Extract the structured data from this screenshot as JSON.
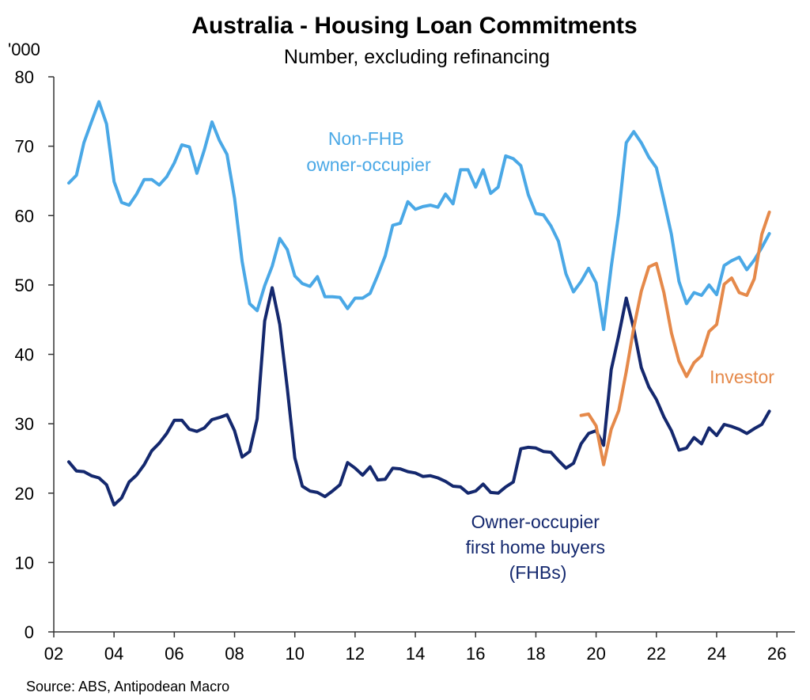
{
  "chart_data": {
    "type": "line",
    "title": "Australia - Housing Loan Commitments",
    "subtitle": "Number, excluding refinancing",
    "y_unit": "'000",
    "source": "Source: ABS, Antipodean Macro",
    "ylim": [
      0,
      80
    ],
    "yticks": [
      0,
      10,
      20,
      30,
      40,
      50,
      60,
      70,
      80
    ],
    "xlim": [
      2002,
      2026.6
    ],
    "xticks": [
      {
        "value": 2002,
        "label": "02"
      },
      {
        "value": 2004,
        "label": "04"
      },
      {
        "value": 2006,
        "label": "06"
      },
      {
        "value": 2008,
        "label": "08"
      },
      {
        "value": 2010,
        "label": "10"
      },
      {
        "value": 2012,
        "label": "12"
      },
      {
        "value": 2014,
        "label": "14"
      },
      {
        "value": 2016,
        "label": "16"
      },
      {
        "value": 2018,
        "label": "18"
      },
      {
        "value": 2020,
        "label": "20"
      },
      {
        "value": 2022,
        "label": "22"
      },
      {
        "value": 2024,
        "label": "24"
      },
      {
        "value": 2026,
        "label": "26"
      }
    ],
    "grid": false,
    "series": [
      {
        "name": "Non-FHB owner-occupier",
        "label_lines": [
          "Non-FHB",
          "owner-occupier"
        ],
        "color": "#4aa8e6",
        "points": [
          [
            2002.5,
            64.7
          ],
          [
            2002.75,
            65.8
          ],
          [
            2003.0,
            70.5
          ],
          [
            2003.25,
            73.5
          ],
          [
            2003.5,
            76.4
          ],
          [
            2003.75,
            73.2
          ],
          [
            2004.0,
            64.9
          ],
          [
            2004.25,
            61.9
          ],
          [
            2004.5,
            61.5
          ],
          [
            2004.75,
            63.1
          ],
          [
            2005.0,
            65.2
          ],
          [
            2005.25,
            65.2
          ],
          [
            2005.5,
            64.4
          ],
          [
            2005.75,
            65.6
          ],
          [
            2006.0,
            67.6
          ],
          [
            2006.25,
            70.2
          ],
          [
            2006.5,
            69.9
          ],
          [
            2006.75,
            66.1
          ],
          [
            2007.0,
            69.5
          ],
          [
            2007.25,
            73.5
          ],
          [
            2007.5,
            70.8
          ],
          [
            2007.75,
            68.8
          ],
          [
            2008.0,
            62.5
          ],
          [
            2008.25,
            53.4
          ],
          [
            2008.5,
            47.3
          ],
          [
            2008.75,
            46.3
          ],
          [
            2009.0,
            49.9
          ],
          [
            2009.25,
            52.7
          ],
          [
            2009.5,
            56.7
          ],
          [
            2009.75,
            55.1
          ],
          [
            2010.0,
            51.3
          ],
          [
            2010.25,
            50.2
          ],
          [
            2010.5,
            49.8
          ],
          [
            2010.75,
            51.2
          ],
          [
            2011.0,
            48.3
          ],
          [
            2011.25,
            48.3
          ],
          [
            2011.5,
            48.2
          ],
          [
            2011.75,
            46.6
          ],
          [
            2012.0,
            48.1
          ],
          [
            2012.25,
            48.1
          ],
          [
            2012.5,
            48.8
          ],
          [
            2012.75,
            51.4
          ],
          [
            2013.0,
            54.2
          ],
          [
            2013.25,
            58.6
          ],
          [
            2013.5,
            58.9
          ],
          [
            2013.75,
            62.0
          ],
          [
            2014.0,
            60.9
          ],
          [
            2014.25,
            61.3
          ],
          [
            2014.5,
            61.5
          ],
          [
            2014.75,
            61.2
          ],
          [
            2015.0,
            63.1
          ],
          [
            2015.25,
            61.7
          ],
          [
            2015.5,
            66.6
          ],
          [
            2015.75,
            66.6
          ],
          [
            2016.0,
            64.1
          ],
          [
            2016.25,
            66.6
          ],
          [
            2016.5,
            63.2
          ],
          [
            2016.75,
            64.1
          ],
          [
            2017.0,
            68.6
          ],
          [
            2017.25,
            68.2
          ],
          [
            2017.5,
            67.2
          ],
          [
            2017.75,
            63.0
          ],
          [
            2018.0,
            60.3
          ],
          [
            2018.25,
            60.1
          ],
          [
            2018.5,
            58.5
          ],
          [
            2018.75,
            56.3
          ],
          [
            2019.0,
            51.6
          ],
          [
            2019.25,
            49.0
          ],
          [
            2019.5,
            50.5
          ],
          [
            2019.75,
            52.4
          ],
          [
            2020.0,
            50.3
          ],
          [
            2020.25,
            43.6
          ],
          [
            2020.5,
            52.6
          ],
          [
            2020.75,
            60.3
          ],
          [
            2021.0,
            70.5
          ],
          [
            2021.25,
            72.1
          ],
          [
            2021.5,
            70.5
          ],
          [
            2021.75,
            68.4
          ],
          [
            2022.0,
            66.9
          ],
          [
            2022.25,
            62.2
          ],
          [
            2022.5,
            57.3
          ],
          [
            2022.75,
            50.5
          ],
          [
            2023.0,
            47.3
          ],
          [
            2023.25,
            48.9
          ],
          [
            2023.5,
            48.5
          ],
          [
            2023.75,
            50.0
          ],
          [
            2024.0,
            48.6
          ],
          [
            2024.25,
            52.8
          ],
          [
            2024.5,
            53.5
          ],
          [
            2024.75,
            54.0
          ],
          [
            2025.0,
            52.2
          ],
          [
            2025.25,
            53.6
          ],
          [
            2025.5,
            55.4
          ],
          [
            2025.75,
            57.4
          ]
        ]
      },
      {
        "name": "Owner-occupier first home buyers (FHBs)",
        "label_lines": [
          "Owner-occupier",
          "first home buyers",
          "(FHBs)"
        ],
        "color": "#14286e",
        "points": [
          [
            2002.5,
            24.5
          ],
          [
            2002.75,
            23.2
          ],
          [
            2003.0,
            23.1
          ],
          [
            2003.25,
            22.5
          ],
          [
            2003.5,
            22.2
          ],
          [
            2003.75,
            21.2
          ],
          [
            2004.0,
            18.3
          ],
          [
            2004.25,
            19.3
          ],
          [
            2004.5,
            21.6
          ],
          [
            2004.75,
            22.6
          ],
          [
            2005.0,
            24.1
          ],
          [
            2005.25,
            26.1
          ],
          [
            2005.5,
            27.2
          ],
          [
            2005.75,
            28.6
          ],
          [
            2006.0,
            30.5
          ],
          [
            2006.25,
            30.5
          ],
          [
            2006.5,
            29.2
          ],
          [
            2006.75,
            28.9
          ],
          [
            2007.0,
            29.4
          ],
          [
            2007.25,
            30.6
          ],
          [
            2007.5,
            30.9
          ],
          [
            2007.75,
            31.3
          ],
          [
            2008.0,
            29.0
          ],
          [
            2008.25,
            25.2
          ],
          [
            2008.5,
            26.0
          ],
          [
            2008.75,
            30.7
          ],
          [
            2009.0,
            44.8
          ],
          [
            2009.25,
            49.6
          ],
          [
            2009.5,
            44.3
          ],
          [
            2009.75,
            35.1
          ],
          [
            2010.0,
            25.1
          ],
          [
            2010.25,
            21.0
          ],
          [
            2010.5,
            20.3
          ],
          [
            2010.75,
            20.1
          ],
          [
            2011.0,
            19.5
          ],
          [
            2011.25,
            20.3
          ],
          [
            2011.5,
            21.2
          ],
          [
            2011.75,
            24.4
          ],
          [
            2012.0,
            23.6
          ],
          [
            2012.25,
            22.6
          ],
          [
            2012.5,
            23.8
          ],
          [
            2012.75,
            21.9
          ],
          [
            2013.0,
            22.0
          ],
          [
            2013.25,
            23.6
          ],
          [
            2013.5,
            23.5
          ],
          [
            2013.75,
            23.1
          ],
          [
            2014.0,
            22.9
          ],
          [
            2014.25,
            22.4
          ],
          [
            2014.5,
            22.5
          ],
          [
            2014.75,
            22.2
          ],
          [
            2015.0,
            21.7
          ],
          [
            2015.25,
            21.0
          ],
          [
            2015.5,
            20.9
          ],
          [
            2015.75,
            20.0
          ],
          [
            2016.0,
            20.3
          ],
          [
            2016.25,
            21.3
          ],
          [
            2016.5,
            20.1
          ],
          [
            2016.75,
            20.0
          ],
          [
            2017.0,
            20.9
          ],
          [
            2017.25,
            21.6
          ],
          [
            2017.5,
            26.4
          ],
          [
            2017.75,
            26.6
          ],
          [
            2018.0,
            26.5
          ],
          [
            2018.25,
            26.0
          ],
          [
            2018.5,
            25.9
          ],
          [
            2018.75,
            24.7
          ],
          [
            2019.0,
            23.6
          ],
          [
            2019.25,
            24.3
          ],
          [
            2019.5,
            27.1
          ],
          [
            2019.75,
            28.6
          ],
          [
            2020.0,
            29.0
          ],
          [
            2020.25,
            26.9
          ],
          [
            2020.5,
            37.8
          ],
          [
            2020.75,
            42.7
          ],
          [
            2021.0,
            48.1
          ],
          [
            2021.25,
            43.7
          ],
          [
            2021.5,
            38.1
          ],
          [
            2021.75,
            35.3
          ],
          [
            2022.0,
            33.5
          ],
          [
            2022.25,
            31.0
          ],
          [
            2022.5,
            29.0
          ],
          [
            2022.75,
            26.2
          ],
          [
            2023.0,
            26.5
          ],
          [
            2023.25,
            28.0
          ],
          [
            2023.5,
            27.1
          ],
          [
            2023.75,
            29.4
          ],
          [
            2024.0,
            28.3
          ],
          [
            2024.25,
            29.9
          ],
          [
            2024.5,
            29.6
          ],
          [
            2024.75,
            29.2
          ],
          [
            2025.0,
            28.6
          ],
          [
            2025.25,
            29.3
          ],
          [
            2025.5,
            29.9
          ],
          [
            2025.75,
            31.8
          ]
        ]
      },
      {
        "name": "Investor",
        "label_lines": [
          "Investor"
        ],
        "color": "#e5894a",
        "points": [
          [
            2019.5,
            31.2
          ],
          [
            2019.75,
            31.4
          ],
          [
            2020.0,
            29.7
          ],
          [
            2020.25,
            24.1
          ],
          [
            2020.5,
            29.2
          ],
          [
            2020.75,
            31.9
          ],
          [
            2021.0,
            37.5
          ],
          [
            2021.25,
            43.8
          ],
          [
            2021.5,
            49.1
          ],
          [
            2021.75,
            52.6
          ],
          [
            2022.0,
            53.1
          ],
          [
            2022.25,
            48.9
          ],
          [
            2022.5,
            43.1
          ],
          [
            2022.75,
            39.0
          ],
          [
            2023.0,
            36.8
          ],
          [
            2023.25,
            38.8
          ],
          [
            2023.5,
            39.8
          ],
          [
            2023.75,
            43.3
          ],
          [
            2024.0,
            44.3
          ],
          [
            2024.25,
            50.1
          ],
          [
            2024.5,
            51.0
          ],
          [
            2024.75,
            48.9
          ],
          [
            2025.0,
            48.5
          ],
          [
            2025.25,
            50.9
          ],
          [
            2025.5,
            57.3
          ],
          [
            2025.75,
            60.5
          ]
        ]
      }
    ]
  }
}
